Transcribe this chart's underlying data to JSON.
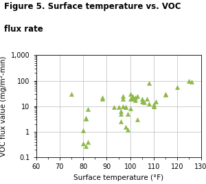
{
  "title_line1": "Figure 5. Surface temperature vs. VOC",
  "title_line2": "flux rate",
  "xlabel": "Surface temperature (°F)",
  "ylabel": "VOC flux value (mg/m²-min)",
  "xlim": [
    60,
    130
  ],
  "ylim": [
    0.1,
    1000
  ],
  "xticks": [
    60,
    70,
    80,
    90,
    100,
    110,
    120,
    130
  ],
  "marker_color": "#8db84a",
  "marker": "^",
  "markersize": 4.5,
  "x": [
    75,
    80,
    80,
    81,
    81,
    81,
    82,
    82,
    88,
    88,
    93,
    95,
    96,
    96,
    96,
    97,
    97,
    97,
    98,
    98,
    98,
    99,
    99,
    100,
    100,
    100,
    101,
    101,
    102,
    102,
    103,
    103,
    105,
    105,
    106,
    107,
    108,
    108,
    110,
    110,
    110,
    111,
    115,
    115,
    120,
    125,
    126
  ],
  "y": [
    30,
    1.1,
    0.35,
    3.5,
    3.2,
    0.28,
    7.5,
    0.4,
    22,
    20,
    9.5,
    9,
    5,
    6.5,
    2.5,
    20,
    25,
    10,
    9,
    9.5,
    1.5,
    5,
    1.2,
    20,
    30,
    8,
    25,
    20,
    22,
    17,
    3,
    25,
    15,
    20,
    14,
    20,
    80,
    13,
    12,
    10,
    10,
    15,
    30,
    28,
    55,
    100,
    90
  ],
  "background_color": "#ffffff",
  "grid_color": "#bbbbbb",
  "title_fontsize": 8.5,
  "label_fontsize": 7.5,
  "tick_fontsize": 7
}
